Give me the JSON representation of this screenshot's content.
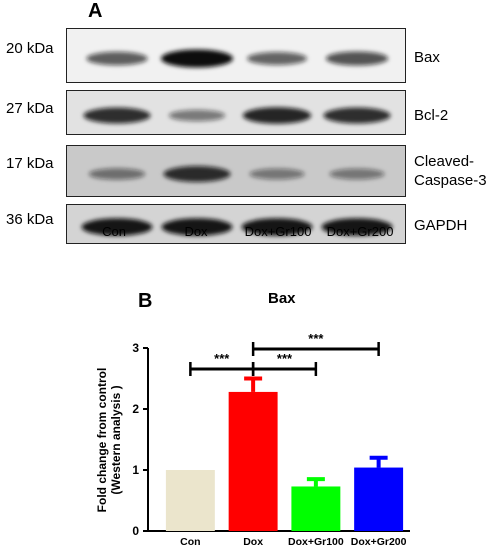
{
  "panel_a": {
    "letter": "A",
    "rows": [
      {
        "kda": "20 kDa",
        "protein": "Bax",
        "intensity": [
          0.55,
          1.0,
          0.5,
          0.6
        ]
      },
      {
        "kda": "27 kDa",
        "protein": "Bcl-2",
        "intensity": [
          0.8,
          0.35,
          0.85,
          0.8
        ]
      },
      {
        "kda": "17 kDa",
        "protein_lines": [
          "Cleaved-",
          "Caspase-3"
        ],
        "intensity": [
          0.35,
          0.8,
          0.3,
          0.3
        ]
      },
      {
        "kda": "36 kDa",
        "protein": "GAPDH",
        "intensity": [
          0.95,
          0.95,
          0.95,
          0.95
        ]
      }
    ],
    "lanes": [
      "Con",
      "Dox",
      "Dox+Gr100",
      "Dox+Gr200"
    ]
  },
  "panel_b": {
    "letter": "B"
  },
  "chart_data": {
    "type": "bar",
    "title": "Bax",
    "ylabel_lines": [
      "Fold change from control",
      "(Western analysis )"
    ],
    "categories": [
      "Con",
      "Dox",
      "Dox+Gr100",
      "Dox+Gr200"
    ],
    "values": [
      1.0,
      2.28,
      0.73,
      1.04
    ],
    "errors": [
      0,
      0.22,
      0.12,
      0.16
    ],
    "colors": [
      "#ebe5cc",
      "#ff0000",
      "#00ff00",
      "#0000ff"
    ],
    "ylim": [
      0,
      3
    ],
    "yticks": [
      "0",
      "1",
      "2",
      "3"
    ],
    "significance": [
      {
        "from": 0,
        "to": 1,
        "label": "***"
      },
      {
        "from": 1,
        "to": 2,
        "label": "***"
      },
      {
        "from": 1,
        "to": 3,
        "label": "***"
      }
    ]
  }
}
